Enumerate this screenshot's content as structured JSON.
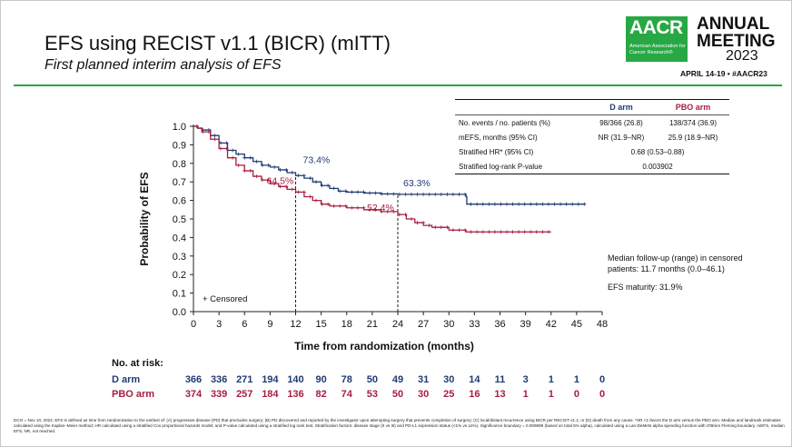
{
  "header": {
    "title": "EFS using RECIST v1.1 (BICR) (mITT)",
    "subtitle": "First planned interim analysis of EFS",
    "logo_text": "AACR",
    "logo_subtext": "American Association for Cancer Research®",
    "event_line1": "ANNUAL",
    "event_line2": "MEETING",
    "event_year": "2023",
    "event_dates": "APRIL 14-19 • #AACR23"
  },
  "colors": {
    "d_arm": "#1f3b73",
    "pbo_arm": "#a61e3f",
    "accent_green": "#27a844"
  },
  "summary_table": {
    "headers": [
      "",
      "D arm",
      "PBO arm"
    ],
    "rows": [
      [
        "No. events / no. patients (%)",
        "98/366 (26.8)",
        "138/374 (36.9)"
      ],
      [
        "mEFS, months (95% CI)",
        "NR (31.9–NR)",
        "25.9 (18.9–NR)"
      ],
      [
        "Stratified HR* (95% CI)",
        "0.68 (0.53–0.88)"
      ],
      [
        "Stratified log-rank P-value",
        "0.003902"
      ]
    ]
  },
  "notes": {
    "followup": "Median follow-up (range) in censored patients: 11.7 months (0.0–46.1)",
    "maturity": "EFS maturity: 31.9%"
  },
  "chart_data": {
    "type": "line",
    "xlabel": "Time from randomization (months)",
    "ylabel": "Probability of EFS",
    "xlim": [
      0,
      48
    ],
    "ylim": [
      0,
      1
    ],
    "xticks": [
      "0",
      "3",
      "6",
      "9",
      "12",
      "15",
      "18",
      "21",
      "24",
      "27",
      "30",
      "33",
      "36",
      "39",
      "42",
      "45",
      "48"
    ],
    "yticks": [
      "0.0",
      "0.1",
      "0.2",
      "0.3",
      "0.4",
      "0.5",
      "0.6",
      "0.7",
      "0.8",
      "0.9",
      "1.0"
    ],
    "legend": "+ Censored",
    "series": [
      {
        "name": "D arm",
        "color": "#1f3b73",
        "points": [
          [
            0,
            1.0
          ],
          [
            0.5,
            0.99
          ],
          [
            1,
            0.98
          ],
          [
            2,
            0.95
          ],
          [
            3,
            0.91
          ],
          [
            4,
            0.87
          ],
          [
            5,
            0.85
          ],
          [
            6,
            0.83
          ],
          [
            7,
            0.81
          ],
          [
            8,
            0.79
          ],
          [
            9,
            0.78
          ],
          [
            10,
            0.765
          ],
          [
            11,
            0.75
          ],
          [
            12,
            0.734
          ],
          [
            13,
            0.72
          ],
          [
            14,
            0.7
          ],
          [
            15,
            0.68
          ],
          [
            16,
            0.665
          ],
          [
            17,
            0.65
          ],
          [
            18,
            0.645
          ],
          [
            20,
            0.64
          ],
          [
            22,
            0.635
          ],
          [
            24,
            0.633
          ],
          [
            27,
            0.633
          ],
          [
            30,
            0.633
          ],
          [
            32,
            0.62
          ],
          [
            32.1,
            0.58
          ],
          [
            36,
            0.58
          ],
          [
            40,
            0.58
          ],
          [
            46,
            0.58
          ]
        ]
      },
      {
        "name": "PBO arm",
        "color": "#a61e3f",
        "points": [
          [
            0,
            1.0
          ],
          [
            0.5,
            0.99
          ],
          [
            1,
            0.97
          ],
          [
            2,
            0.93
          ],
          [
            3,
            0.88
          ],
          [
            4,
            0.83
          ],
          [
            5,
            0.79
          ],
          [
            6,
            0.76
          ],
          [
            7,
            0.73
          ],
          [
            8,
            0.71
          ],
          [
            9,
            0.69
          ],
          [
            10,
            0.675
          ],
          [
            11,
            0.66
          ],
          [
            12,
            0.645
          ],
          [
            13,
            0.62
          ],
          [
            14,
            0.6
          ],
          [
            15,
            0.58
          ],
          [
            16,
            0.57
          ],
          [
            18,
            0.56
          ],
          [
            20,
            0.55
          ],
          [
            22,
            0.54
          ],
          [
            24,
            0.524
          ],
          [
            25,
            0.5
          ],
          [
            26,
            0.48
          ],
          [
            27,
            0.465
          ],
          [
            28,
            0.455
          ],
          [
            30,
            0.44
          ],
          [
            32,
            0.43
          ],
          [
            36,
            0.43
          ],
          [
            40,
            0.43
          ],
          [
            42,
            0.43
          ]
        ]
      }
    ],
    "annotations": [
      {
        "x": 12,
        "y": 0.734,
        "label": "73.4%",
        "series": "D arm"
      },
      {
        "x": 12,
        "y": 0.645,
        "label": "64.5%",
        "series": "PBO arm"
      },
      {
        "x": 24,
        "y": 0.633,
        "label": "63.3%",
        "series": "D arm"
      },
      {
        "x": 24,
        "y": 0.524,
        "label": "52.4%",
        "series": "PBO arm"
      }
    ]
  },
  "at_risk": {
    "title": "No. at risk:",
    "rows": [
      {
        "label": "D arm",
        "color": "#1f3b73",
        "values": [
          "366",
          "336",
          "271",
          "194",
          "140",
          "90",
          "78",
          "50",
          "49",
          "31",
          "30",
          "14",
          "11",
          "3",
          "1",
          "1",
          "0"
        ]
      },
      {
        "label": "PBO arm",
        "color": "#a61e3f",
        "values": [
          "374",
          "339",
          "257",
          "184",
          "136",
          "82",
          "74",
          "53",
          "50",
          "30",
          "25",
          "16",
          "13",
          "1",
          "1",
          "0",
          "0"
        ]
      }
    ]
  },
  "footer": "DCO = Nov 10, 2022. EFS is defined as time from randomization to the earliest of: (A) progressive disease (PD) that precludes surgery; (B) PD discovered and reported by the investigator upon attempting surgery that prevents completion of surgery; (C) local/distant recurrence using BICR per RECIST v1.1; or (D) death from any cause. *HR <1 favors the D arm versus the PBO arm. Median and landmark estimates calculated using the Kaplan–Meier method; HR calculated using a stratified Cox proportional hazards model; and P-value calculated using a stratified log rank test. Stratification factors: disease stage (II vs III) and PD-L1 expression status (<1% vs ≥1%). Significance boundary = 0.009899 (based on total 5% alpha), calculated using a Lan-DeMets alpha spending function with O'Brien Fleming boundary. mEFS, median EFS; NR, not reached."
}
